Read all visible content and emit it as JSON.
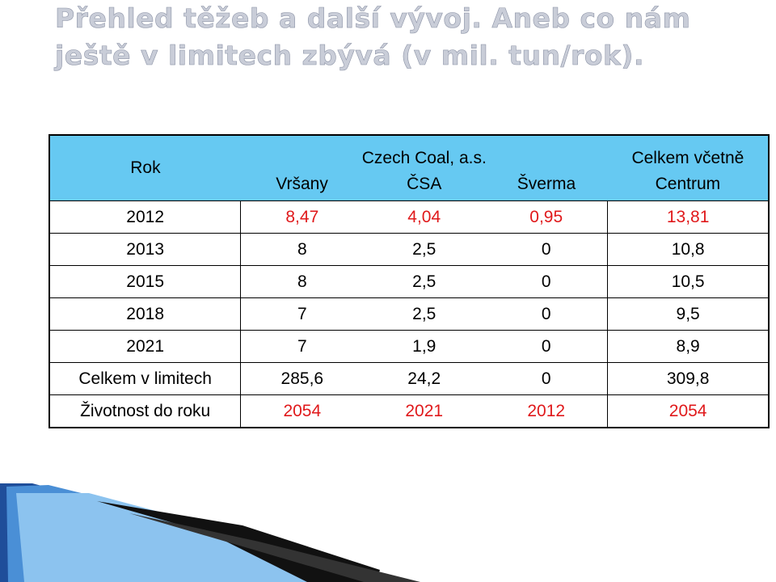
{
  "header": {
    "title_lines": [
      "Přehled těžeb  a další vývoj. Aneb co nám",
      "ještě v limitech zbývá (v mil. tun/rok)."
    ]
  },
  "table": {
    "header": {
      "year": "Rok",
      "group": "Czech Coal, a.s.",
      "columns": [
        "Vršany",
        "ČSA",
        "Šverma"
      ],
      "total": [
        "Celkem včetně",
        "Centrum"
      ]
    },
    "rows": [
      [
        "2012",
        "8,47",
        "4,04",
        "0,95",
        "13,81"
      ],
      [
        "2013",
        "8",
        "2,5",
        "0",
        "10,8"
      ],
      [
        "2015",
        "8",
        "2,5",
        "0",
        "10,5"
      ],
      [
        "2018",
        "7",
        "2,5",
        "0",
        "9,5"
      ],
      [
        "2021",
        "7",
        "1,9",
        "0",
        "8,9"
      ],
      [
        "Celkem v limitech",
        "285,6",
        "24,2",
        "0",
        "309,8"
      ],
      [
        "Životnost do roku",
        "2054",
        "2021",
        "2012",
        "2054"
      ]
    ]
  }
}
